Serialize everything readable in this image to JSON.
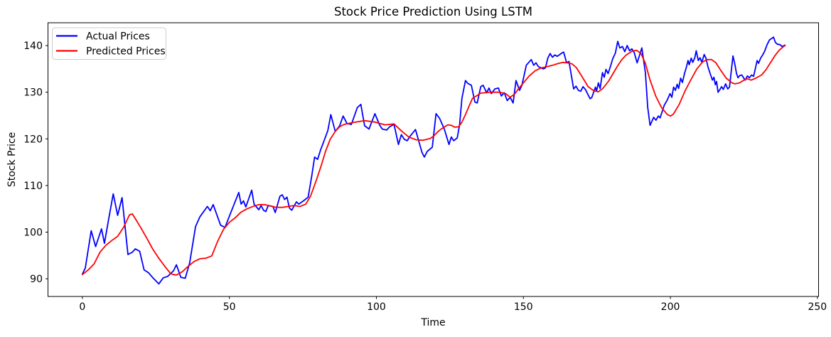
{
  "figure": {
    "title": "Stock Price Prediction Using LSTM",
    "xlabel": "Time",
    "ylabel": "Stock Price"
  },
  "chart_data": {
    "type": "line",
    "title": "Stock Price Prediction Using LSTM",
    "xlabel": "Time",
    "ylabel": "Stock Price",
    "xlim": [
      -11.7,
      250.4
    ],
    "ylim": [
      86.2,
      144.9
    ],
    "x_ticks": [
      0,
      50,
      100,
      150,
      200,
      250
    ],
    "y_ticks": [
      90,
      100,
      110,
      120,
      130,
      140
    ],
    "grid": false,
    "legend": {
      "position": "upper-left",
      "entries": [
        {
          "label": "Actual Prices",
          "color": "#0000ff"
        },
        {
          "label": "Predicted Prices",
          "color": "#ff0000"
        }
      ]
    },
    "series": [
      {
        "name": "Actual Prices",
        "color": "#0000ff",
        "x": [
          0,
          1,
          3,
          4.5,
          6.5,
          7.5,
          9,
          10.5,
          12,
          13.5,
          15.5,
          17,
          18,
          19.5,
          21,
          22.5,
          24,
          26,
          27.5,
          29,
          31,
          32,
          33.5,
          35,
          36.5,
          38.5,
          40,
          42.5,
          43.5,
          44.5,
          47,
          48.5,
          50.5,
          53.2,
          54,
          54.8,
          55.6,
          57.6,
          58.4,
          60,
          60.8,
          61.6,
          62.4,
          63.2,
          64.8,
          65.6,
          67.2,
          68,
          68.8,
          69.6,
          70.4,
          71.2,
          72.8,
          73.6,
          75.2,
          76.8,
          78,
          79,
          80,
          81,
          82.5,
          83.5,
          84.5,
          86,
          87.5,
          88.7,
          90,
          91.5,
          93.5,
          94.7,
          96,
          97.5,
          99.5,
          101,
          102,
          103.5,
          104.5,
          106,
          107.5,
          108.5,
          109.5,
          110.5,
          111.5,
          113.3,
          115.5,
          116.3,
          117.3,
          119,
          120.3,
          121.5,
          123.1,
          124.7,
          125.5,
          126.3,
          127.5,
          128.3,
          129.1,
          130.3,
          131.1,
          132.3,
          133.5,
          134.3,
          135.5,
          136.3,
          137.5,
          138.3,
          139.1,
          140.3,
          141.5,
          142.5,
          143.5,
          144.5,
          145.5,
          146.5,
          147.5,
          148.7,
          149.5,
          151,
          152.7,
          153.5,
          154.3,
          155.1,
          156.7,
          157.5,
          158.3,
          159.1,
          159.9,
          160.7,
          161.5,
          163.1,
          163.7,
          164.7,
          165.5,
          167.1,
          167.9,
          168.7,
          169.5,
          170.3,
          171.1,
          172.7,
          173.3,
          174.5,
          174.9,
          175.5,
          176.1,
          176.9,
          177.5,
          178.1,
          178.8,
          179.7,
          180.4,
          181.3,
          182.1,
          182.8,
          183.7,
          184.5,
          185.3,
          186.1,
          186.9,
          187.7,
          188.7,
          190.3,
          191.5,
          192.3,
          193.1,
          194.3,
          195.1,
          195.9,
          196.5,
          197.9,
          198.9,
          199.9,
          200.5,
          201.1,
          201.7,
          202.3,
          202.8,
          203.5,
          204.1,
          204.8,
          205.5,
          206,
          206.4,
          207.1,
          207.6,
          208.3,
          208.8,
          209.5,
          210.1,
          210.7,
          211.5,
          212.1,
          212.8,
          213.7,
          214.3,
          214.8,
          215.3,
          215.7,
          216.2,
          216.8,
          217.4,
          218,
          218.8,
          219.5,
          220.1,
          221.3,
          222,
          222.5,
          223,
          223.6,
          224.3,
          224.9,
          225.5,
          226.2,
          226.9,
          227.6,
          228.3,
          228.9,
          229.5,
          230,
          230.7,
          231.3,
          232,
          232.9,
          233.7,
          234.4,
          235.1,
          235.7,
          236.4,
          237.3,
          238,
          239
        ],
        "y": [
          91,
          92.3,
          100.3,
          96.9,
          100.7,
          97.6,
          103,
          108.2,
          103.6,
          107.4,
          95.2,
          95.7,
          96.4,
          95.9,
          91.9,
          91.3,
          90.2,
          88.9,
          90.2,
          90.5,
          91.7,
          93,
          90.3,
          90.1,
          93.4,
          101.2,
          103.3,
          105.5,
          104.6,
          105.9,
          101.5,
          101,
          104.2,
          108.5,
          106,
          106.7,
          105.4,
          109,
          106,
          104.8,
          105.7,
          104.7,
          104.4,
          105.7,
          105.5,
          104.2,
          107.7,
          108,
          107,
          107.5,
          105.2,
          104.7,
          106.5,
          106,
          106.7,
          107.5,
          112,
          116.1,
          115.6,
          117.6,
          120.1,
          121.8,
          125.2,
          121.6,
          122.8,
          124.9,
          123.3,
          123.1,
          126.7,
          127.4,
          122.8,
          122.1,
          125.4,
          123.1,
          122.1,
          121.9,
          122.6,
          123.1,
          118.8,
          120.9,
          119.9,
          119.6,
          120.6,
          122,
          117.1,
          116.1,
          117.3,
          118.2,
          125.4,
          124.4,
          122.1,
          118.8,
          120.4,
          119.6,
          120.2,
          123,
          128.7,
          132.5,
          131.9,
          131.5,
          127.9,
          127.7,
          131.2,
          131.5,
          129.9,
          130.9,
          129.7,
          130.7,
          130.9,
          129.2,
          129.9,
          128.2,
          128.9,
          127.7,
          132.5,
          130.4,
          131.5,
          135.8,
          137,
          135.8,
          136.3,
          135.5,
          135,
          135.2,
          137.3,
          138.3,
          137.5,
          138,
          137.7,
          138.4,
          138.6,
          136.3,
          136.6,
          130.7,
          131.3,
          130.4,
          130.2,
          131.2,
          130.6,
          128.6,
          128.9,
          131.1,
          130.2,
          132,
          130.8,
          134.2,
          133.2,
          134.9,
          134,
          135.7,
          137.2,
          138.4,
          140.9,
          139.5,
          139.8,
          138.7,
          140,
          138.9,
          139.3,
          138.5,
          136.3,
          139.5,
          134.2,
          126.7,
          122.9,
          124.6,
          124,
          124.9,
          124.5,
          127.2,
          128.3,
          129.7,
          128.9,
          131.1,
          130.4,
          131.7,
          130.8,
          133,
          132.1,
          134,
          135.5,
          136.8,
          135.9,
          137.3,
          136.4,
          137.4,
          138.9,
          136.8,
          137.4,
          136.4,
          138.1,
          137.3,
          135.4,
          133.7,
          132.6,
          133.2,
          131.6,
          132.3,
          130,
          130.5,
          131.2,
          130.6,
          131.8,
          130.7,
          131.1,
          137.8,
          135.8,
          134,
          133.1,
          133.6,
          133.7,
          133.1,
          132.6,
          133.5,
          133.1,
          133.7,
          133.4,
          135.1,
          136.8,
          136.2,
          137.3,
          137.9,
          138.7,
          140.2,
          141.2,
          141.5,
          141.8,
          140.7,
          140.3,
          140.2,
          139.8,
          140.1
        ]
      },
      {
        "name": "Predicted Prices",
        "color": "#ff0000",
        "x": [
          0,
          2,
          4,
          6,
          8,
          10,
          12,
          14,
          16,
          17,
          18,
          20,
          22,
          24,
          26,
          28,
          30,
          31,
          32,
          34,
          36,
          38,
          40,
          42,
          44,
          46,
          48,
          50,
          52,
          54,
          56,
          58,
          60,
          62,
          64,
          66,
          68,
          70,
          72,
          74,
          76,
          77.6,
          79.5,
          81.1,
          82.7,
          84.3,
          86,
          87.5,
          89,
          92,
          96,
          99.5,
          103,
          106,
          108.7,
          111,
          113.5,
          115.9,
          117.1,
          118.3,
          119.5,
          120.7,
          122,
          124.3,
          125.5,
          126.7,
          128,
          129.1,
          130.3,
          131.5,
          132.7,
          134,
          135.5,
          137,
          138.5,
          140,
          142,
          144,
          145.5,
          147,
          148.3,
          150,
          152,
          154,
          156,
          158,
          160,
          162,
          163.5,
          165,
          166.5,
          168,
          170,
          172,
          174,
          175.5,
          177,
          179,
          180.5,
          182,
          183.5,
          185,
          187,
          188.5,
          190,
          191.5,
          193,
          195,
          197,
          199,
          200,
          201,
          203,
          205,
          207,
          209,
          211,
          212.5,
          214,
          215.5,
          217,
          219,
          221,
          222,
          223.5,
          225,
          226,
          227.5,
          229,
          231,
          232.5,
          234,
          235.5,
          237,
          238.5,
          239
        ],
        "y": [
          90.9,
          91.9,
          93.2,
          95.7,
          97.2,
          98.2,
          99.1,
          101,
          103.7,
          103.9,
          102.9,
          100.8,
          98.6,
          96.3,
          94.4,
          92.7,
          91.1,
          90.9,
          90.8,
          91.5,
          92.7,
          93.7,
          94.3,
          94.4,
          94.9,
          98,
          100.6,
          102.1,
          103.1,
          104.3,
          105,
          105.5,
          105.9,
          105.9,
          105.6,
          105.3,
          105.3,
          105.5,
          105.7,
          105.5,
          106,
          107.7,
          111,
          114,
          117.3,
          119.9,
          121.6,
          122.6,
          123.1,
          123.5,
          123.9,
          123.6,
          123,
          123.2,
          121.6,
          120.4,
          119.8,
          119.7,
          119.9,
          120.1,
          120.6,
          121.4,
          122.1,
          123,
          122.9,
          122.5,
          122.6,
          123.6,
          125.2,
          127,
          128.7,
          129.2,
          129.8,
          129.9,
          130,
          130,
          130,
          129.7,
          128.9,
          129.6,
          130.7,
          132,
          133.5,
          134.6,
          135.2,
          135.5,
          135.8,
          136.2,
          136.4,
          136.3,
          136.1,
          135.3,
          133.3,
          131.2,
          130.3,
          130.1,
          130.8,
          132.4,
          134,
          135.6,
          137,
          138,
          138.8,
          139,
          138.3,
          136.2,
          132.8,
          129.2,
          126.7,
          125.2,
          124.9,
          125.3,
          127.4,
          130.3,
          132.7,
          135,
          136.5,
          137,
          137,
          136.3,
          134.8,
          133,
          132,
          131.8,
          132,
          132.6,
          132.9,
          132.6,
          133,
          133.7,
          134.8,
          136.3,
          137.8,
          139,
          139.8,
          140
        ]
      }
    ]
  }
}
